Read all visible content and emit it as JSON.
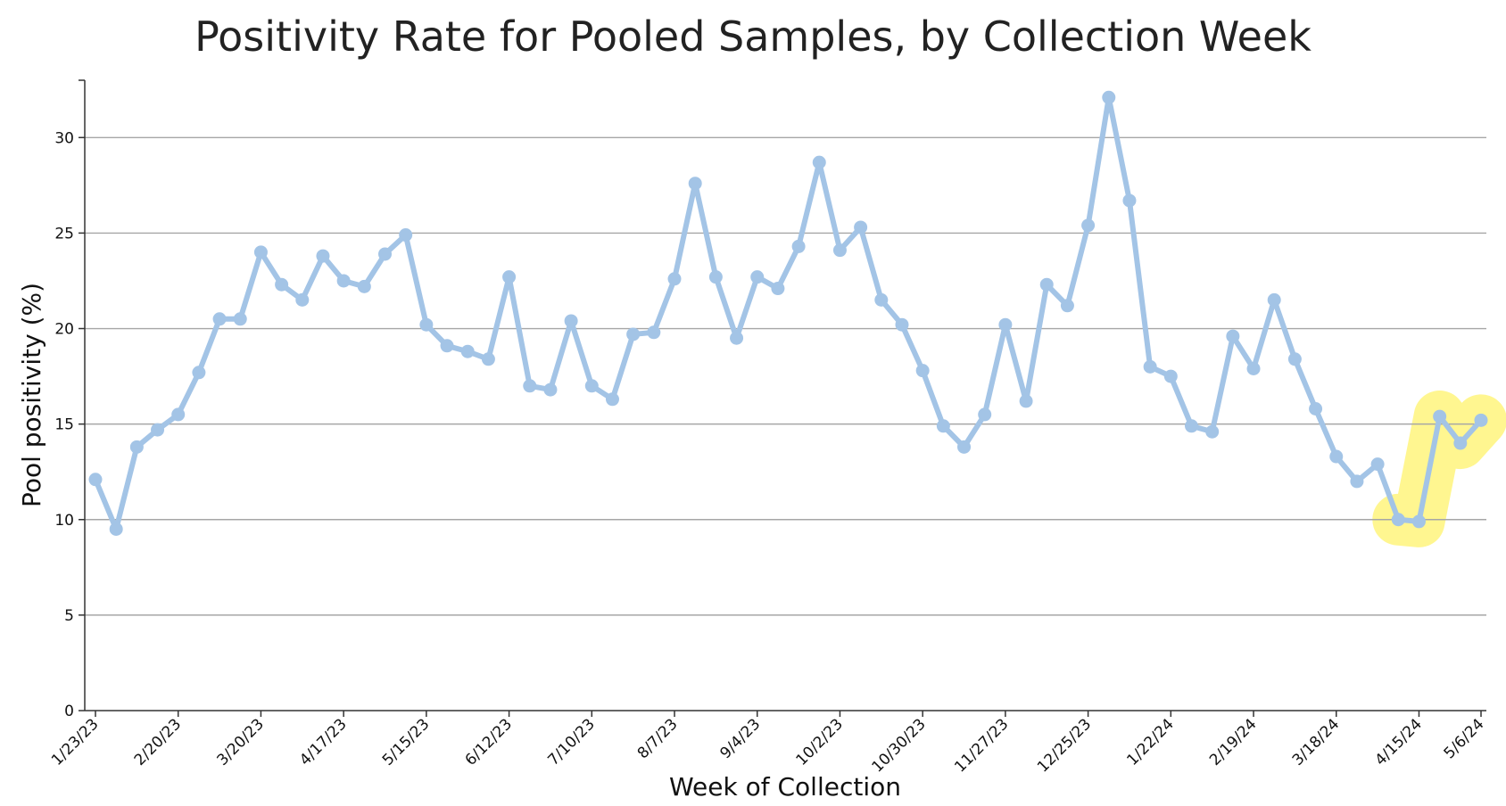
{
  "chart_data": {
    "type": "line",
    "title": "Positivity Rate for Pooled Samples, by Collection Week",
    "xlabel": "Week of Collection",
    "ylabel": "Pool positivity (%)",
    "ylim": [
      0,
      33
    ],
    "yticks": [
      0,
      5,
      10,
      15,
      20,
      25,
      30
    ],
    "grid": "horizontal",
    "x_tick_labels": [
      "1/23/23",
      "2/20/23",
      "3/20/23",
      "4/17/23",
      "5/15/23",
      "6/12/23",
      "7/10/23",
      "8/7/23",
      "9/4/23",
      "10/2/23",
      "10/30/23",
      "11/27/23",
      "12/25/23",
      "1/22/24",
      "2/19/24",
      "3/18/24",
      "4/15/24",
      "5/6/24"
    ],
    "x_tick_indices": [
      0,
      4,
      8,
      12,
      16,
      20,
      24,
      28,
      32,
      36,
      40,
      44,
      48,
      52,
      56,
      60,
      64,
      67
    ],
    "line_color": "#a3c4e6",
    "highlight_color": "#fff68a",
    "highlight_range": [
      63,
      67
    ],
    "values": [
      12.1,
      9.5,
      13.8,
      14.7,
      15.5,
      17.7,
      20.5,
      20.5,
      24.0,
      22.3,
      21.5,
      23.8,
      22.5,
      22.2,
      23.9,
      24.9,
      20.2,
      19.1,
      18.8,
      18.4,
      22.7,
      17.0,
      16.8,
      20.4,
      17.0,
      16.3,
      19.7,
      19.8,
      22.6,
      27.6,
      22.7,
      19.5,
      22.7,
      22.1,
      24.3,
      28.7,
      24.1,
      25.3,
      21.5,
      20.2,
      17.8,
      14.9,
      13.8,
      15.5,
      20.2,
      16.2,
      22.3,
      21.2,
      25.4,
      32.1,
      26.7,
      18.0,
      17.5,
      14.9,
      14.6,
      19.6,
      17.9,
      21.5,
      18.4,
      15.8,
      13.3,
      12.0,
      12.9,
      10.0,
      9.9,
      15.4,
      14.0,
      15.2
    ]
  }
}
